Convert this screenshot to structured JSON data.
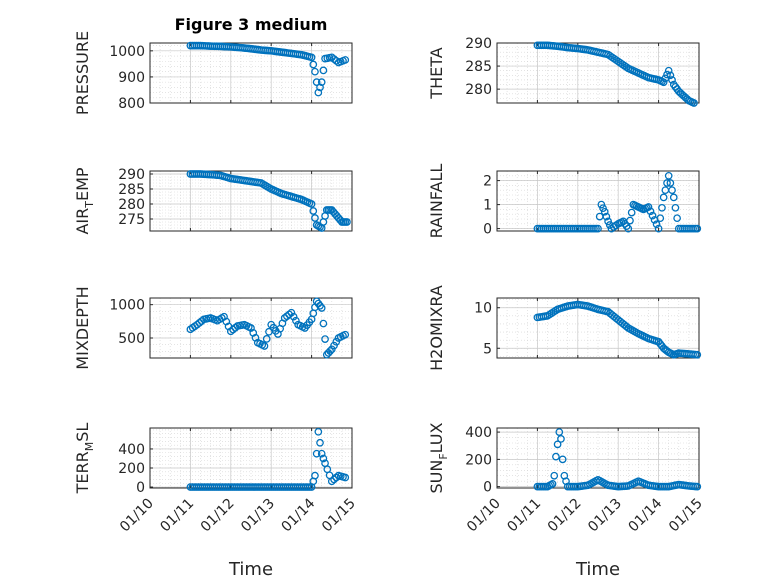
{
  "figure": {
    "title": "Figure 3 medium"
  },
  "chart_data": [
    {
      "type": "scatter",
      "ylabel": "PRESSURE",
      "xlabel": "",
      "xlim": [
        "01/10",
        "01/15"
      ],
      "ylim": [
        800,
        1030
      ],
      "yticks": [
        800,
        900,
        1000
      ],
      "xticks": [],
      "grid": true,
      "series": [
        {
          "x": [
            "01/11 00:00",
            "01/11 06:00",
            "01/11 12:00",
            "01/11 18:00",
            "01/12 00:00",
            "01/12 06:00",
            "01/12 12:00",
            "01/12 18:00",
            "01/13 00:00",
            "01/13 06:00",
            "01/13 12:00",
            "01/13 18:00",
            "01/14 00:00",
            "01/14 02:00",
            "01/14 04:00",
            "01/14 06:00",
            "01/14 08:00",
            "01/14 12:00",
            "01/14 16:00",
            "01/14 20:00"
          ],
          "y": [
            1020,
            1020,
            1018,
            1017,
            1015,
            1012,
            1008,
            1003,
            1000,
            995,
            990,
            985,
            975,
            920,
            840,
            880,
            970,
            975,
            955,
            965
          ]
        }
      ]
    },
    {
      "type": "scatter",
      "ylabel": "THETA",
      "xlabel": "",
      "xlim": [
        "01/10",
        "01/15"
      ],
      "ylim": [
        277,
        290
      ],
      "yticks": [
        280,
        285,
        290
      ],
      "xticks": [],
      "grid": true,
      "series": [
        {
          "x": [
            "01/11 00:00",
            "01/11 06:00",
            "01/11 12:00",
            "01/11 18:00",
            "01/12 00:00",
            "01/12 06:00",
            "01/12 12:00",
            "01/12 18:00",
            "01/13 00:00",
            "01/13 06:00",
            "01/13 12:00",
            "01/13 18:00",
            "01/14 00:00",
            "01/14 03:00",
            "01/14 06:00",
            "01/14 09:00",
            "01/14 12:00",
            "01/14 15:00",
            "01/14 18:00",
            "01/14 21:00"
          ],
          "y": [
            289.5,
            289.5,
            289.3,
            289,
            288.8,
            288.5,
            288,
            287.5,
            286,
            284.5,
            283.5,
            282.5,
            282,
            281.5,
            284,
            281,
            279.5,
            278.5,
            277.5,
            277
          ]
        }
      ]
    },
    {
      "type": "scatter",
      "ylabel": "AIR_TEMP",
      "xlabel": "",
      "xlim": [
        "01/10",
        "01/15"
      ],
      "ylim": [
        271,
        291
      ],
      "yticks": [
        275,
        280,
        285,
        290
      ],
      "xticks": [],
      "grid": true,
      "series": [
        {
          "x": [
            "01/11 00:00",
            "01/11 06:00",
            "01/11 12:00",
            "01/11 18:00",
            "01/12 00:00",
            "01/12 06:00",
            "01/12 12:00",
            "01/12 18:00",
            "01/13 00:00",
            "01/13 06:00",
            "01/13 12:00",
            "01/13 18:00",
            "01/14 00:00",
            "01/14 03:00",
            "01/14 06:00",
            "01/14 09:00",
            "01/14 12:00",
            "01/14 15:00",
            "01/14 18:00",
            "01/14 21:00"
          ],
          "y": [
            290,
            290,
            289.8,
            289.5,
            288.5,
            288,
            287.5,
            287,
            285,
            283.5,
            282.5,
            281.5,
            280,
            273,
            272,
            278,
            278,
            276,
            274,
            274
          ]
        }
      ]
    },
    {
      "type": "scatter",
      "ylabel": "RAINFALL",
      "xlabel": "",
      "xlim": [
        "01/10",
        "01/15"
      ],
      "ylim": [
        -0.1,
        2.4
      ],
      "yticks": [
        0,
        1,
        2
      ],
      "xticks": [],
      "grid": true,
      "series": [
        {
          "x": [
            "01/11 00:00",
            "01/11 06:00",
            "01/11 12:00",
            "01/11 18:00",
            "01/12 00:00",
            "01/12 06:00",
            "01/12 12:00",
            "01/12 14:00",
            "01/12 16:00",
            "01/12 18:00",
            "01/12 20:00",
            "01/13 00:00",
            "01/13 03:00",
            "01/13 06:00",
            "01/13 09:00",
            "01/13 12:00",
            "01/13 15:00",
            "01/13 18:00",
            "01/14 00:00",
            "01/14 03:00",
            "01/14 06:00",
            "01/14 09:00",
            "01/14 12:00",
            "01/14 18:00",
            "01/14 23:00"
          ],
          "y": [
            0,
            0,
            0,
            0,
            0,
            0,
            0,
            1.0,
            0.7,
            0.3,
            0,
            0.2,
            0.3,
            0,
            1.0,
            0.9,
            0.8,
            0.9,
            0,
            1.3,
            2.2,
            1.3,
            0,
            0,
            0
          ]
        }
      ]
    },
    {
      "type": "scatter",
      "ylabel": "MIXDEPTH",
      "xlabel": "",
      "xlim": [
        "01/10",
        "01/15"
      ],
      "ylim": [
        200,
        1100
      ],
      "yticks": [
        500,
        1000
      ],
      "xticks": [],
      "grid": true,
      "series": [
        {
          "x": [
            "01/11 00:00",
            "01/11 04:00",
            "01/11 08:00",
            "01/11 12:00",
            "01/11 16:00",
            "01/11 20:00",
            "01/12 00:00",
            "01/12 04:00",
            "01/12 08:00",
            "01/12 12:00",
            "01/12 16:00",
            "01/12 20:00",
            "01/13 00:00",
            "01/13 04:00",
            "01/13 08:00",
            "01/13 12:00",
            "01/13 16:00",
            "01/13 20:00",
            "01/14 00:00",
            "01/14 03:00",
            "01/14 06:00",
            "01/14 09:00",
            "01/14 12:00",
            "01/14 16:00",
            "01/14 20:00"
          ],
          "y": [
            630,
            700,
            780,
            800,
            760,
            820,
            600,
            680,
            700,
            650,
            430,
            380,
            700,
            560,
            800,
            880,
            700,
            650,
            780,
            1050,
            950,
            250,
            330,
            500,
            550
          ]
        }
      ]
    },
    {
      "type": "scatter",
      "ylabel": "H2OMIXRA",
      "xlabel": "",
      "xlim": [
        "01/10",
        "01/15"
      ],
      "ylim": [
        3.8,
        11.2
      ],
      "yticks": [
        5,
        10
      ],
      "xticks": [],
      "grid": true,
      "series": [
        {
          "x": [
            "01/11 00:00",
            "01/11 06:00",
            "01/11 12:00",
            "01/11 18:00",
            "01/12 00:00",
            "01/12 06:00",
            "01/12 12:00",
            "01/12 18:00",
            "01/13 00:00",
            "01/13 06:00",
            "01/13 12:00",
            "01/13 18:00",
            "01/14 00:00",
            "01/14 03:00",
            "01/14 06:00",
            "01/14 09:00",
            "01/14 12:00",
            "01/14 18:00",
            "01/14 23:00"
          ],
          "y": [
            8.8,
            9.0,
            9.8,
            10.2,
            10.4,
            10.2,
            9.8,
            9.5,
            8.5,
            7.5,
            6.8,
            6.2,
            5.8,
            5.0,
            4.5,
            4.2,
            4.4,
            4.3,
            4.2
          ]
        }
      ]
    },
    {
      "type": "scatter",
      "ylabel": "TERR_MSL",
      "xlabel": "Time",
      "xlim": [
        "01/10",
        "01/15"
      ],
      "ylim": [
        -10,
        620
      ],
      "yticks": [
        0,
        200,
        400
      ],
      "xticks": [
        "01/10",
        "01/11",
        "01/12",
        "01/13",
        "01/14",
        "01/15"
      ],
      "grid": true,
      "series": [
        {
          "x": [
            "01/11 00:00",
            "01/11 06:00",
            "01/11 12:00",
            "01/11 18:00",
            "01/12 00:00",
            "01/12 06:00",
            "01/12 12:00",
            "01/12 18:00",
            "01/13 00:00",
            "01/13 06:00",
            "01/13 12:00",
            "01/13 18:00",
            "01/14 00:00",
            "01/14 02:00",
            "01/14 04:00",
            "01/14 06:00",
            "01/14 08:00",
            "01/14 12:00",
            "01/14 16:00",
            "01/14 20:00"
          ],
          "y": [
            0,
            0,
            0,
            0,
            0,
            0,
            0,
            0,
            0,
            0,
            0,
            0,
            0,
            120,
            580,
            350,
            250,
            60,
            120,
            100
          ]
        }
      ]
    },
    {
      "type": "scatter",
      "ylabel": "SUN_FLUX",
      "xlabel": "Time",
      "xlim": [
        "01/10",
        "01/15"
      ],
      "ylim": [
        -10,
        430
      ],
      "yticks": [
        0,
        200,
        400
      ],
      "xticks": [
        "01/10",
        "01/11",
        "01/12",
        "01/13",
        "01/14",
        "01/15"
      ],
      "grid": true,
      "series": [
        {
          "x": [
            "01/11 00:00",
            "01/11 06:00",
            "01/11 09:00",
            "01/11 10:00",
            "01/11 11:00",
            "01/11 12:00",
            "01/11 13:00",
            "01/11 14:00",
            "01/11 15:00",
            "01/11 16:00",
            "01/11 18:00",
            "01/12 00:00",
            "01/12 06:00",
            "01/12 12:00",
            "01/12 18:00",
            "01/13 00:00",
            "01/13 06:00",
            "01/13 12:00",
            "01/13 18:00",
            "01/14 00:00",
            "01/14 06:00",
            "01/14 12:00",
            "01/14 18:00",
            "01/14 23:00"
          ],
          "y": [
            0,
            0,
            20,
            80,
            220,
            310,
            400,
            350,
            200,
            80,
            0,
            0,
            10,
            50,
            10,
            0,
            5,
            40,
            10,
            0,
            0,
            15,
            5,
            0
          ]
        }
      ]
    }
  ]
}
